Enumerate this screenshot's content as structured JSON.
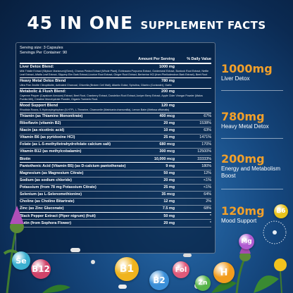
{
  "headline": {
    "big": "45 IN ONE",
    "small": "SUPPLEMENT FACTS"
  },
  "facts": {
    "serving_size": "Serving size: 3 Capsules",
    "servings_per_container": "Servings Per Container: 90",
    "columns": {
      "amount": "Amount Per Serving",
      "dv": "% Daily Value"
    },
    "blends": [
      {
        "name": "Liver Detox Blend:",
        "amount": "1000 mg",
        "ingredients": "Milk Thistle Extract (Silybum Marianum)(Seed), Chanca Piedra Extract (Whole Plant), Echinacea Purpurea Extract, Goldenseal Extract, Burdock Root Extract, Nettle Leaf Extract, Alfalfa Leaf Extract, Slippery Elm Bark Extract,Licorice Root Extract, Ginger Root Extract, Berberine HCl (from Phellodendron Bark Extract), Beet Root"
      },
      {
        "name": "Heavy Metal Detox Blend",
        "amount": "780 mg",
        "ingredients": "Ultra Fine Zeolite Clinoptilolite, Activated Charcoal, Chlorella (Broken Cell Wall), Atlantic Dulse, Spirulina, Cilantro (Coriander), Garlic"
      },
      {
        "name": "Metabolic & Flush Blend:",
        "amount": "200 mg",
        "ingredients": "Cayenne Pepper (Capsicum Annuum) Extract, Beet Root, Cranberry Extract, Dandelion Root Extract,Juniper Berry Extract, Apple Cider Vinegar Powder (Malus Pumila Mill), Creatine Monohydrate Powder, Organic Turmeric Root."
      },
      {
        "name": "Mood Support Blend",
        "amount": "120 mg",
        "ingredients": "Rhodiola Rosea, 5-Hydroxytryptophan (5-HTP), L-Theanine, Chamomile (Matricaria chamomilla), Lemon Balm (Melissa officinalis)"
      }
    ],
    "nutrients": [
      {
        "name": "Thiamin (as Thiamine Mononitrate)",
        "amount": "400 mcg",
        "dv": "67%"
      },
      {
        "name": "Riboflavin (vitamin B2)",
        "amount": "20 mg",
        "dv": "1538%"
      },
      {
        "name": "Niacin (as nicotinic acid)",
        "amount": "10 mg",
        "dv": "63%"
      },
      {
        "name": "Vitamin B6 (as pyridoxine HCl)",
        "amount": "25 mg",
        "dv": "1471%"
      },
      {
        "name": "Folate (as L-5-methyltetrahydrofolate calcium salt)",
        "amount": "680 mcg",
        "dv": "170%"
      },
      {
        "name": "Vitamin B12 (as methylcobalamin)",
        "amount": "300 mcg",
        "dv": "12500%"
      },
      {
        "name": "Biotin",
        "amount": "10,000 mcg",
        "dv": "33333%"
      },
      {
        "name": "Pantothenic Acid (Vitamin B5) (as D-calcium pantothenate)",
        "amount": "9 mg",
        "dv": "180%"
      },
      {
        "name": "Magnesium (as Magnesium Citrate)",
        "amount": "50 mg",
        "dv": "12%"
      },
      {
        "name": "Sodium (as sodium chloride)",
        "amount": "20 mg",
        "dv": "<1%"
      },
      {
        "name": "Potassium (from 78 mg Potassium Citrate)",
        "amount": "25 mg",
        "dv": "<1%"
      },
      {
        "name": "Selenium (as L-Selenomethionine)",
        "amount": "35 mcg",
        "dv": "64%"
      },
      {
        "name": "Choline (as Choline Bitartrate)",
        "amount": "12 mg",
        "dv": "2%"
      },
      {
        "name": "Zinc (as Zinc Gluconate)",
        "amount": "7.5 mg",
        "dv": "68%"
      },
      {
        "name": "Black Pepper Extract (Piper nigrum) (fruit)",
        "amount": "50 mg",
        "dv": "*"
      },
      {
        "name": "Rutin (from Sophora Flower)",
        "amount": "20 mg",
        "dv": "*"
      }
    ]
  },
  "callouts": [
    {
      "amount": "1000mg",
      "label": "Liver Detox"
    },
    {
      "amount": "780mg",
      "label": "Heavy Metal Detox"
    },
    {
      "amount": "200mg",
      "label": "Energy and Metabolism Boost"
    },
    {
      "amount": "120mg",
      "label": "Mood Support"
    }
  ],
  "bubbles": [
    "Se",
    "B12",
    "B1",
    "B2",
    "Fol",
    "Zn",
    "H",
    "Mg",
    "B6"
  ],
  "colors": {
    "accent": "#f2a02a"
  }
}
